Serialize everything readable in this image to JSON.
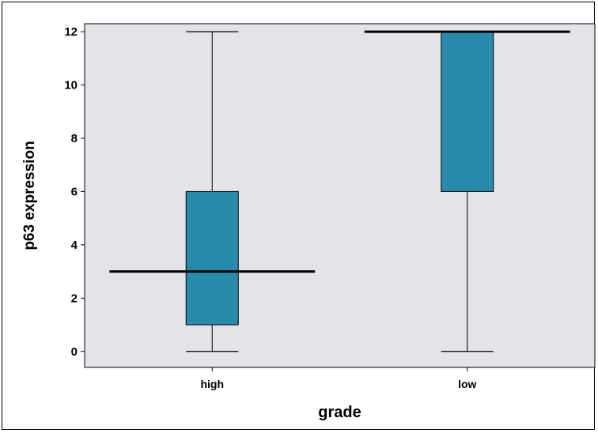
{
  "chart_data": {
    "type": "boxplot",
    "title": "",
    "xlabel": "grade",
    "ylabel": "p63 expression",
    "categories": [
      "high",
      "low"
    ],
    "boxes": [
      {
        "category": "high",
        "min": 0,
        "q1": 1,
        "median": 3,
        "q3": 6,
        "max": 12
      },
      {
        "category": "low",
        "min": 0,
        "q1": 6,
        "median": 12,
        "q3": 12,
        "max": 12
      }
    ],
    "ylim": [
      -0.6,
      12.3
    ],
    "yticks": [
      0,
      2,
      4,
      6,
      8,
      10,
      12
    ],
    "grid": false,
    "legend": "none",
    "colors": {
      "plot_background": "#e4e3e8",
      "box_fill": "#2a8aaa",
      "box_stroke": "#000000",
      "median_line": "#000000"
    }
  }
}
